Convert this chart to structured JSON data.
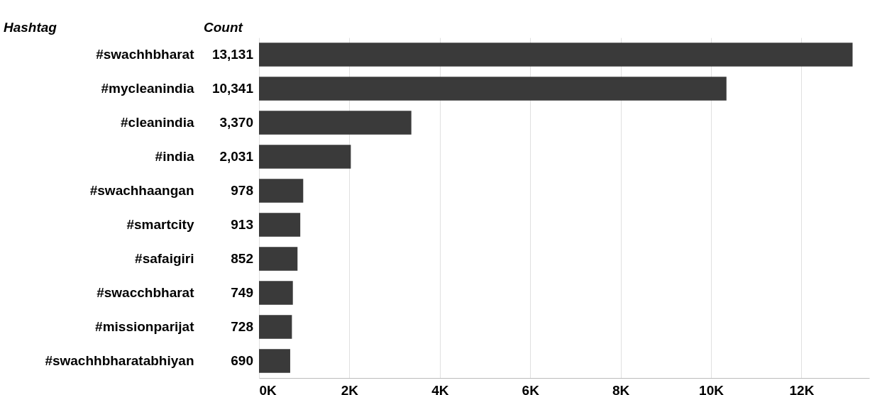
{
  "chart_data": {
    "type": "bar",
    "orientation": "horizontal",
    "annotations": [
      "Hashtag",
      "Count"
    ],
    "categories": [
      "#swachhbharat",
      "#mycleanindia",
      "#cleanindia",
      "#india",
      "#swachhaangan",
      "#smartcity",
      "#safaigiri",
      "#swacchbharat",
      "#missionparijat",
      "#swachhbharatabhiyan"
    ],
    "values": [
      13131,
      10341,
      3370,
      2031,
      978,
      913,
      852,
      749,
      728,
      690
    ],
    "value_labels": [
      "13,131",
      "10,341",
      "3,370",
      "2,031",
      "978",
      "913",
      "852",
      "749",
      "728",
      "690"
    ],
    "color": "#3a3a3a",
    "grid": "x",
    "xlim": [
      0,
      13500
    ],
    "xticks": [
      {
        "value": 0,
        "label": "0K"
      },
      {
        "value": 2000,
        "label": "2K"
      },
      {
        "value": 4000,
        "label": "4K"
      },
      {
        "value": 6000,
        "label": "6K"
      },
      {
        "value": 8000,
        "label": "8K"
      },
      {
        "value": 10000,
        "label": "10K"
      },
      {
        "value": 12000,
        "label": "12K"
      }
    ]
  }
}
